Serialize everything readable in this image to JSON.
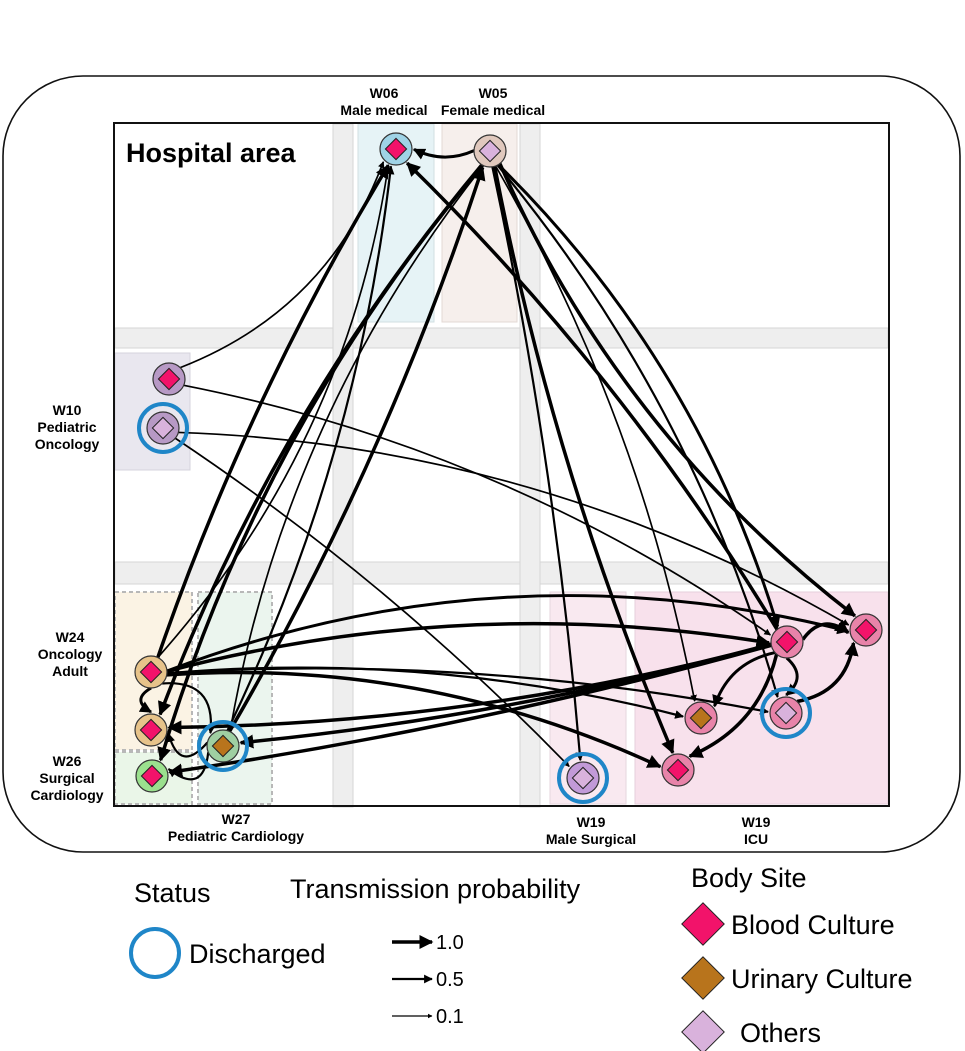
{
  "title": "Hospital area",
  "colors": {
    "blood": "#f2136a",
    "urinary": "#b8741c",
    "others": "#d9b2dc",
    "discharged": "#1f86c8",
    "edge": "#000000"
  },
  "wards": {
    "w06": {
      "code": "W06",
      "name": "Male medical"
    },
    "w05": {
      "code": "W05",
      "name": "Female medical"
    },
    "w10": {
      "code": "W10",
      "name1": "Pediatric",
      "name2": "Oncology"
    },
    "w24": {
      "code": "W24",
      "name1": "Oncology",
      "name2": "Adult"
    },
    "w26": {
      "code": "W26",
      "name1": "Surgical",
      "name2": "Cardiology"
    },
    "w27": {
      "code": "W27",
      "name": "Pediatric Cardiology"
    },
    "w19s": {
      "code": "W19",
      "name": "Male Surgical"
    },
    "w19i": {
      "code": "W19",
      "name": "ICU"
    }
  },
  "nodes": [
    {
      "id": "n06",
      "ward": "W06",
      "site": "blood",
      "discharged": false
    },
    {
      "id": "n05",
      "ward": "W05",
      "site": "others",
      "discharged": false
    },
    {
      "id": "n10a",
      "ward": "W10",
      "site": "blood",
      "discharged": false
    },
    {
      "id": "n10b",
      "ward": "W10",
      "site": "others",
      "discharged": true
    },
    {
      "id": "n24",
      "ward": "W24",
      "site": "blood",
      "discharged": false
    },
    {
      "id": "n24b",
      "ward": "W24",
      "site": "blood",
      "discharged": false
    },
    {
      "id": "n26",
      "ward": "W26",
      "site": "blood",
      "discharged": false
    },
    {
      "id": "n27",
      "ward": "W27",
      "site": "urinary",
      "discharged": true
    },
    {
      "id": "nMS",
      "ward": "W19 Male Surgical",
      "site": "others",
      "discharged": true
    },
    {
      "id": "nI1",
      "ward": "W19 ICU",
      "site": "blood",
      "discharged": false
    },
    {
      "id": "nI2",
      "ward": "W19 ICU",
      "site": "blood",
      "discharged": false
    },
    {
      "id": "nI3",
      "ward": "W19 ICU",
      "site": "urinary",
      "discharged": false
    },
    {
      "id": "nI4",
      "ward": "W19 ICU",
      "site": "others",
      "discharged": true
    },
    {
      "id": "nI5",
      "ward": "W19 ICU",
      "site": "blood",
      "discharged": false
    }
  ],
  "edges": [
    {
      "from": "n05",
      "to": "n06",
      "p": 0.8
    },
    {
      "from": "n05",
      "to": "n24b",
      "p": 1.0
    },
    {
      "from": "n05",
      "to": "n26",
      "p": 1.0
    },
    {
      "from": "n05",
      "to": "n27",
      "p": 0.3
    },
    {
      "from": "n05",
      "to": "nI1",
      "p": 1.0
    },
    {
      "from": "n05",
      "to": "nI2",
      "p": 0.8
    },
    {
      "from": "n05",
      "to": "nI3",
      "p": 0.3
    },
    {
      "from": "n05",
      "to": "nI4",
      "p": 0.5
    },
    {
      "from": "n05",
      "to": "nI5",
      "p": 1.0
    },
    {
      "from": "n05",
      "to": "nMS",
      "p": 0.5
    },
    {
      "from": "n10a",
      "to": "n06",
      "p": 0.3
    },
    {
      "from": "n10a",
      "to": "nI2",
      "p": 0.3
    },
    {
      "from": "n10b",
      "to": "nMS",
      "p": 0.3
    },
    {
      "from": "n10b",
      "to": "nI5",
      "p": 0.3
    },
    {
      "from": "n24",
      "to": "n06",
      "p": 1.0
    },
    {
      "from": "n24",
      "to": "n06",
      "p": 0.3
    },
    {
      "from": "n24",
      "to": "n24b",
      "p": 0.8
    },
    {
      "from": "n24",
      "to": "n27",
      "p": 0.5
    },
    {
      "from": "n24",
      "to": "nI1",
      "p": 1.0
    },
    {
      "from": "n24",
      "to": "nI2",
      "p": 1.0
    },
    {
      "from": "n24",
      "to": "nI3",
      "p": 0.5
    },
    {
      "from": "n24",
      "to": "nI4",
      "p": 0.5
    },
    {
      "from": "n24",
      "to": "nI5",
      "p": 0.8
    },
    {
      "from": "n27",
      "to": "n06",
      "p": 0.5
    },
    {
      "from": "n27",
      "to": "n05",
      "p": 1.0
    },
    {
      "from": "n27",
      "to": "n24b",
      "p": 0.5
    },
    {
      "from": "n27",
      "to": "n26",
      "p": 0.5
    },
    {
      "from": "nI2",
      "to": "n06",
      "p": 1.0
    },
    {
      "from": "nI2",
      "to": "n24b",
      "p": 1.0
    },
    {
      "from": "nI2",
      "to": "n27",
      "p": 1.0
    },
    {
      "from": "nI2",
      "to": "n26",
      "p": 1.0
    },
    {
      "from": "nI2",
      "to": "nI1",
      "p": 1.0
    },
    {
      "from": "nI2",
      "to": "nI3",
      "p": 0.8
    },
    {
      "from": "nI2",
      "to": "nI4",
      "p": 0.8
    },
    {
      "from": "nI2",
      "to": "nI5",
      "p": 1.0
    },
    {
      "from": "nI4",
      "to": "nI5",
      "p": 1.0
    }
  ],
  "legend": {
    "status_title": "Status",
    "discharged_label": "Discharged",
    "transmission_title": "Transmission probability",
    "probabilities": [
      {
        "value": 1.0,
        "label": "1.0"
      },
      {
        "value": 0.5,
        "label": "0.5"
      },
      {
        "value": 0.1,
        "label": "0.1"
      }
    ],
    "bodysite_title": "Body Site",
    "sites": [
      {
        "key": "blood",
        "label": "Blood Culture"
      },
      {
        "key": "urinary",
        "label": "Urinary Culture"
      },
      {
        "key": "others",
        "label": "Others"
      }
    ]
  }
}
